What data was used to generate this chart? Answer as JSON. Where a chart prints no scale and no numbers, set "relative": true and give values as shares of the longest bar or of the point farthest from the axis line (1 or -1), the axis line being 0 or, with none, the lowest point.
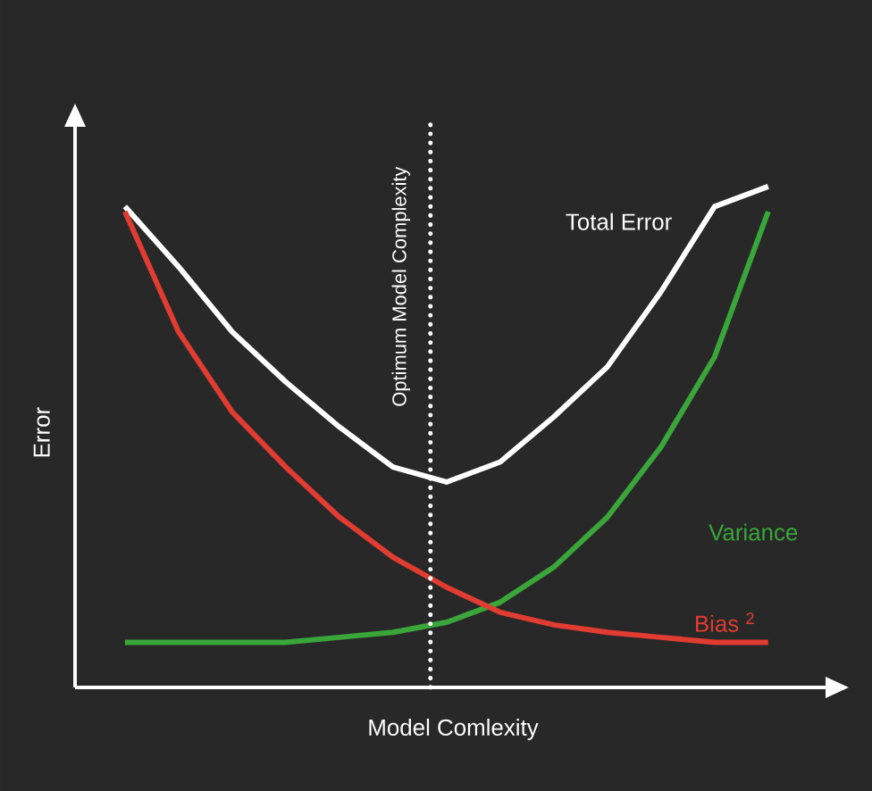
{
  "chart_data": {
    "type": "line",
    "relative": true,
    "xlabel": "Model Comlexity",
    "ylabel": "Error",
    "marker": "none",
    "line_style": "solid",
    "categories": [
      null,
      null,
      null,
      null,
      null,
      null,
      null,
      null,
      null,
      null,
      null,
      null,
      null
    ],
    "series": [
      {
        "name": "Total Error",
        "color": "#ffffff",
        "values": [
          0.96,
          0.84,
          0.71,
          0.61,
          0.52,
          0.44,
          0.41,
          0.45,
          0.54,
          0.64,
          0.79,
          0.96,
          1.0
        ]
      },
      {
        "name": "Variance",
        "color": "#3aa63a",
        "values": [
          0.09,
          0.09,
          0.09,
          0.09,
          0.1,
          0.11,
          0.13,
          0.17,
          0.24,
          0.34,
          0.48,
          0.66,
          0.95
        ]
      },
      {
        "name": "Bias $^{2}$",
        "color": "#e03c31",
        "values": [
          0.95,
          0.71,
          0.55,
          0.44,
          0.34,
          0.26,
          0.2,
          0.15,
          0.125,
          0.11,
          0.1,
          0.09,
          0.09
        ]
      }
    ],
    "annotations": [
      "Optimum Model Complexity"
    ]
  }
}
